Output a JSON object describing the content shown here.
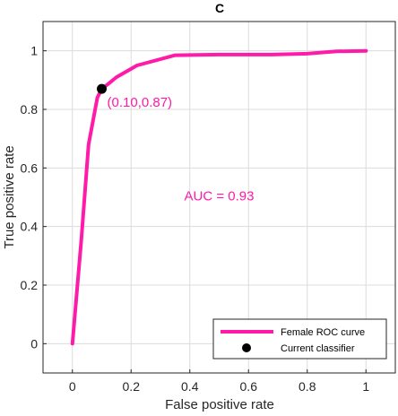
{
  "chart_data": {
    "type": "line",
    "title": "C",
    "xlabel": "False positive rate",
    "ylabel": "True positive rate",
    "xlim": [
      -0.1,
      1.1
    ],
    "ylim": [
      -0.1,
      1.1
    ],
    "xticks": [
      0,
      0.2,
      0.4,
      0.6,
      0.8,
      1
    ],
    "yticks": [
      0,
      0.2,
      0.4,
      0.6,
      0.8,
      1
    ],
    "xtick_labels": [
      "0",
      "0.2",
      "0.4",
      "0.6",
      "0.8",
      "1"
    ],
    "ytick_labels": [
      "0",
      "0.2",
      "0.4",
      "0.6",
      "0.8",
      "1"
    ],
    "grid": true,
    "legend_position": "bottom-right",
    "series": [
      {
        "name": "Female ROC curve",
        "color": "#ff1aa8",
        "x": [
          0,
          0.03,
          0.055,
          0.085,
          0.1,
          0.12,
          0.15,
          0.22,
          0.35,
          0.5,
          0.68,
          0.8,
          0.9,
          1.0
        ],
        "y": [
          0,
          0.35,
          0.68,
          0.84,
          0.87,
          0.885,
          0.91,
          0.95,
          0.985,
          0.987,
          0.987,
          0.99,
          0.998,
          1.0
        ]
      }
    ],
    "markers": [
      {
        "name": "Current classifier",
        "color": "#000000",
        "x": 0.1,
        "y": 0.87,
        "label": "(0.10,0.87)",
        "label_color": "#ff1aa8"
      }
    ],
    "annotations": [
      {
        "text": "AUC = 0.93",
        "color": "#ff1aa8",
        "x": 0.5,
        "y": 0.49
      }
    ]
  }
}
